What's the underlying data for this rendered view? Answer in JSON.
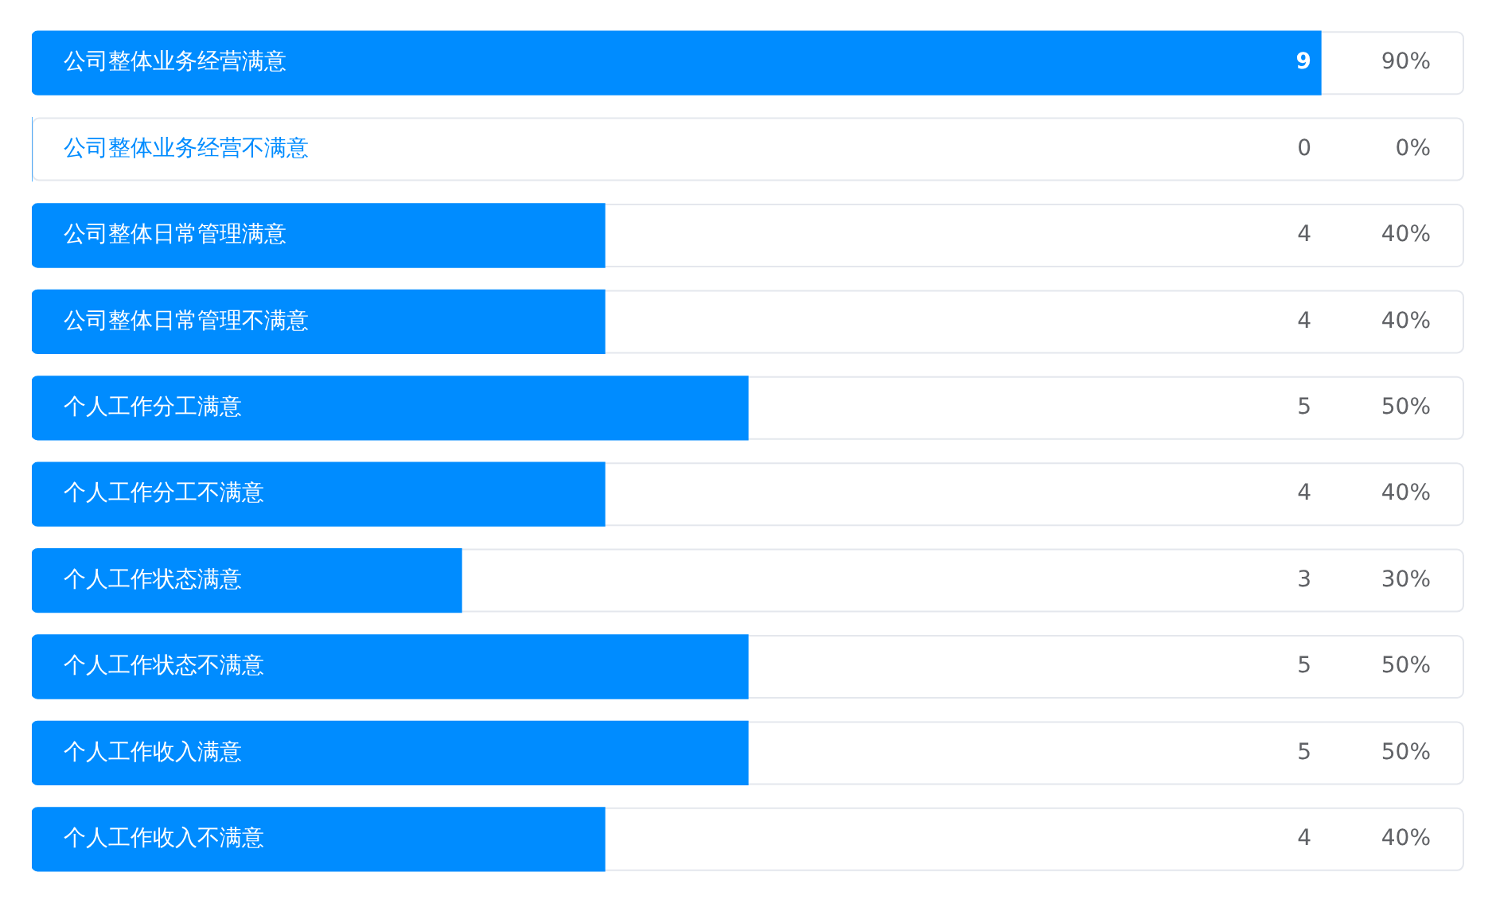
{
  "chart_data": {
    "type": "bar",
    "orientation": "horizontal",
    "categories": [
      "公司整体业务经营满意",
      "公司整体业务经营不满意",
      "公司整体日常管理满意",
      "公司整体日常管理不满意",
      "个人工作分工满意",
      "个人工作分工不满意",
      "个人工作状态满意",
      "个人工作状态不满意",
      "个人工作收入满意",
      "个人工作收入不满意"
    ],
    "values": [
      90,
      0,
      40,
      40,
      50,
      40,
      30,
      50,
      50,
      40
    ],
    "value_labels": [
      "90%",
      "0%",
      "40%",
      "40%",
      "50%",
      "40%",
      "30%",
      "50%",
      "50%",
      "40%"
    ],
    "annotations": [
      "9",
      "0",
      "4",
      "4",
      "5",
      "4",
      "3",
      "5",
      "5",
      "4"
    ],
    "color": "#008cff",
    "xlim": [
      0,
      100
    ]
  }
}
